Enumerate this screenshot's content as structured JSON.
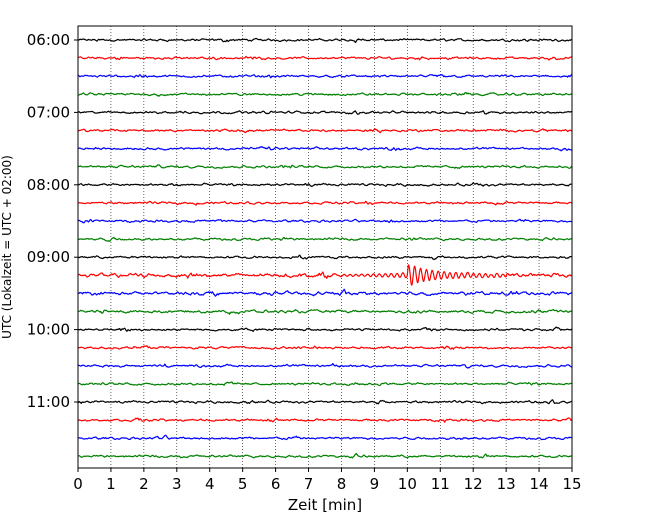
{
  "chart_data": {
    "type": "line",
    "title": "",
    "xlabel": "Zeit  [min]",
    "ylabel": "UTC (Lokalzeit = UTC + 02:00)",
    "xlim": [
      0,
      15
    ],
    "x_ticks": [
      "0",
      "1",
      "2",
      "3",
      "4",
      "5",
      "6",
      "7",
      "8",
      "9",
      "10",
      "11",
      "12",
      "13",
      "14",
      "15"
    ],
    "y_tick_labels": [
      "06:00",
      "07:00",
      "08:00",
      "09:00",
      "10:00",
      "11:00"
    ],
    "grid": "vertical-dotted",
    "trace_interval_minutes": 15,
    "color_cycle": [
      "#000000",
      "#ff0000",
      "#0000ff",
      "#008000"
    ],
    "rows": [
      {
        "utc": "06:00",
        "amp": 1.0
      },
      {
        "utc": "06:15",
        "amp": 1.0
      },
      {
        "utc": "06:30",
        "amp": 1.0
      },
      {
        "utc": "06:45",
        "amp": 1.0
      },
      {
        "utc": "07:00",
        "amp": 1.0
      },
      {
        "utc": "07:15",
        "amp": 1.0
      },
      {
        "utc": "07:30",
        "amp": 1.0
      },
      {
        "utc": "07:45",
        "amp": 1.0
      },
      {
        "utc": "08:00",
        "amp": 1.0
      },
      {
        "utc": "08:15",
        "amp": 1.0
      },
      {
        "utc": "08:30",
        "amp": 1.0
      },
      {
        "utc": "08:45",
        "amp": 1.0
      },
      {
        "utc": "09:00",
        "amp": 1.0
      },
      {
        "utc": "09:15",
        "amp": 1.6,
        "event": {
          "start_min": 8.0,
          "peak_min": 10.1,
          "end_min": 13.0,
          "peak_amp": 9.5
        }
      },
      {
        "utc": "09:30",
        "amp": 1.4
      },
      {
        "utc": "09:45",
        "amp": 1.2
      },
      {
        "utc": "10:00",
        "amp": 1.0
      },
      {
        "utc": "10:15",
        "amp": 1.0
      },
      {
        "utc": "10:30",
        "amp": 1.0
      },
      {
        "utc": "10:45",
        "amp": 1.0
      },
      {
        "utc": "11:00",
        "amp": 1.0
      },
      {
        "utc": "11:15",
        "amp": 1.0
      },
      {
        "utc": "11:30",
        "amp": 1.0
      },
      {
        "utc": "11:45",
        "amp": 1.0
      }
    ]
  }
}
